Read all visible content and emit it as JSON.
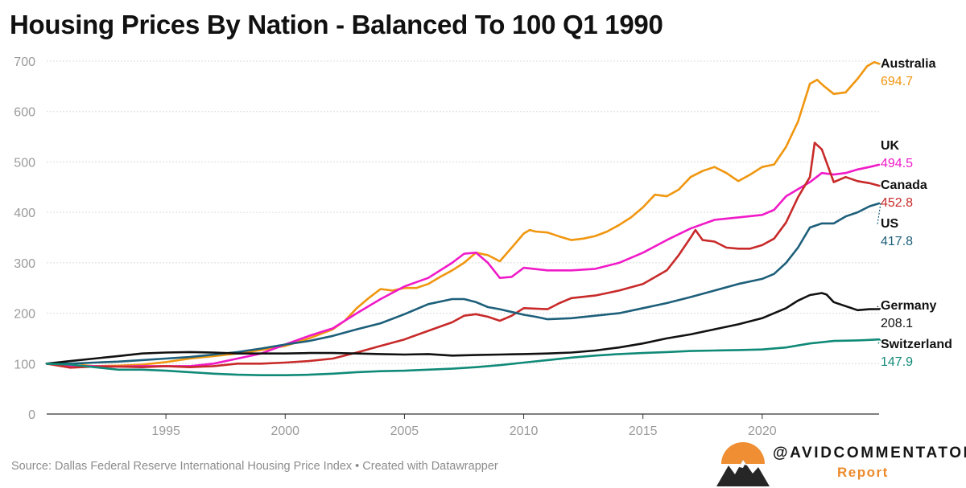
{
  "title": "Housing Prices By Nation - Balanced To 100 Q1 1990",
  "source": "Source: Dallas Federal Reserve International Housing Price Index • Created with Datawrapper",
  "brand": {
    "handle": "@AVIDCOMMENTATOR",
    "sub": "Report"
  },
  "chart_data": {
    "type": "line",
    "title": "Housing Prices By Nation - Balanced To 100 Q1 1990",
    "xlabel": "",
    "ylabel": "",
    "xlim": [
      1990.0,
      2024.9
    ],
    "ylim": [
      0,
      700
    ],
    "yticks": [
      0,
      100,
      200,
      300,
      400,
      500,
      600,
      700
    ],
    "xticks": [
      1995,
      2000,
      2005,
      2010,
      2015,
      2020
    ],
    "grid": "horizontal",
    "legend": "direct labels at line ends (right)",
    "series": [
      {
        "name": "Australia",
        "end_label": "694.7",
        "color": "#f0960f",
        "points": [
          [
            1990,
            100
          ],
          [
            1990.5,
            97
          ],
          [
            1991,
            93
          ],
          [
            1991.5,
            97
          ],
          [
            1992,
            95
          ],
          [
            1993,
            96
          ],
          [
            1994,
            98
          ],
          [
            1995,
            103
          ],
          [
            1996,
            110
          ],
          [
            1997,
            115
          ],
          [
            1998,
            120
          ],
          [
            1999,
            127
          ],
          [
            2000,
            135
          ],
          [
            2001,
            150
          ],
          [
            2002,
            168
          ],
          [
            2002.5,
            185
          ],
          [
            2003,
            210
          ],
          [
            2003.5,
            230
          ],
          [
            2004,
            248
          ],
          [
            2004.5,
            245
          ],
          [
            2005,
            250
          ],
          [
            2005.5,
            250
          ],
          [
            2006,
            258
          ],
          [
            2006.5,
            272
          ],
          [
            2007,
            285
          ],
          [
            2007.5,
            300
          ],
          [
            2008,
            320
          ],
          [
            2008.5,
            315
          ],
          [
            2009,
            303
          ],
          [
            2009.5,
            330
          ],
          [
            2010,
            358
          ],
          [
            2010.25,
            365
          ],
          [
            2010.5,
            362
          ],
          [
            2011,
            360
          ],
          [
            2011.5,
            352
          ],
          [
            2012,
            345
          ],
          [
            2012.5,
            348
          ],
          [
            2013,
            353
          ],
          [
            2013.5,
            362
          ],
          [
            2014,
            375
          ],
          [
            2014.5,
            390
          ],
          [
            2015,
            410
          ],
          [
            2015.5,
            435
          ],
          [
            2016,
            432
          ],
          [
            2016.5,
            445
          ],
          [
            2017,
            470
          ],
          [
            2017.5,
            482
          ],
          [
            2018,
            490
          ],
          [
            2018.5,
            478
          ],
          [
            2019,
            462
          ],
          [
            2019.5,
            475
          ],
          [
            2020,
            490
          ],
          [
            2020.5,
            495
          ],
          [
            2021,
            530
          ],
          [
            2021.5,
            580
          ],
          [
            2022,
            655
          ],
          [
            2022.3,
            663
          ],
          [
            2022.6,
            650
          ],
          [
            2023,
            635
          ],
          [
            2023.5,
            638
          ],
          [
            2024,
            665
          ],
          [
            2024.4,
            690
          ],
          [
            2024.7,
            698
          ],
          [
            2024.9,
            694.7
          ]
        ]
      },
      {
        "name": "UK",
        "end_label": "494.5",
        "color": "#f01ac8",
        "points": [
          [
            1990,
            100
          ],
          [
            1991,
            95
          ],
          [
            1992,
            95
          ],
          [
            1993,
            94
          ],
          [
            1994,
            95
          ],
          [
            1995,
            95
          ],
          [
            1996,
            95
          ],
          [
            1997,
            100
          ],
          [
            1998,
            110
          ],
          [
            1999,
            120
          ],
          [
            2000,
            138
          ],
          [
            2001,
            155
          ],
          [
            2002,
            170
          ],
          [
            2003,
            200
          ],
          [
            2004,
            228
          ],
          [
            2005,
            253
          ],
          [
            2006,
            270
          ],
          [
            2007,
            300
          ],
          [
            2007.5,
            318
          ],
          [
            2008,
            320
          ],
          [
            2008.5,
            300
          ],
          [
            2009,
            270
          ],
          [
            2009.5,
            272
          ],
          [
            2010,
            290
          ],
          [
            2011,
            285
          ],
          [
            2012,
            285
          ],
          [
            2013,
            288
          ],
          [
            2014,
            300
          ],
          [
            2015,
            320
          ],
          [
            2016,
            345
          ],
          [
            2017,
            368
          ],
          [
            2018,
            385
          ],
          [
            2019,
            390
          ],
          [
            2020,
            395
          ],
          [
            2020.5,
            405
          ],
          [
            2021,
            432
          ],
          [
            2022,
            460
          ],
          [
            2022.5,
            478
          ],
          [
            2023,
            475
          ],
          [
            2023.5,
            478
          ],
          [
            2024,
            485
          ],
          [
            2024.5,
            490
          ],
          [
            2024.9,
            494.5
          ]
        ]
      },
      {
        "name": "Canada",
        "end_label": "452.8",
        "color": "#c82a2a",
        "points": [
          [
            1990,
            100
          ],
          [
            1990.5,
            96
          ],
          [
            1991,
            92
          ],
          [
            1992,
            94
          ],
          [
            1993,
            94
          ],
          [
            1994,
            93
          ],
          [
            1995,
            95
          ],
          [
            1996,
            93
          ],
          [
            1997,
            95
          ],
          [
            1998,
            100
          ],
          [
            1999,
            100
          ],
          [
            2000,
            102
          ],
          [
            2001,
            105
          ],
          [
            2002,
            110
          ],
          [
            2003,
            122
          ],
          [
            2004,
            135
          ],
          [
            2005,
            148
          ],
          [
            2006,
            165
          ],
          [
            2007,
            182
          ],
          [
            2007.5,
            195
          ],
          [
            2008,
            198
          ],
          [
            2008.5,
            193
          ],
          [
            2009,
            185
          ],
          [
            2009.5,
            195
          ],
          [
            2010,
            210
          ],
          [
            2011,
            208
          ],
          [
            2011.5,
            220
          ],
          [
            2012,
            230
          ],
          [
            2013,
            235
          ],
          [
            2014,
            245
          ],
          [
            2015,
            258
          ],
          [
            2016,
            285
          ],
          [
            2016.5,
            315
          ],
          [
            2017,
            350
          ],
          [
            2017.2,
            365
          ],
          [
            2017.5,
            345
          ],
          [
            2018,
            342
          ],
          [
            2018.5,
            330
          ],
          [
            2019,
            328
          ],
          [
            2019.5,
            328
          ],
          [
            2020,
            335
          ],
          [
            2020.5,
            348
          ],
          [
            2021,
            380
          ],
          [
            2021.5,
            430
          ],
          [
            2022,
            470
          ],
          [
            2022.2,
            538
          ],
          [
            2022.5,
            525
          ],
          [
            2023,
            460
          ],
          [
            2023.5,
            470
          ],
          [
            2024,
            462
          ],
          [
            2024.5,
            458
          ],
          [
            2024.9,
            452.8
          ]
        ]
      },
      {
        "name": "US",
        "end_label": "417.8",
        "color": "#1d5f7a",
        "points": [
          [
            1990,
            100
          ],
          [
            1991,
            100
          ],
          [
            1992,
            102
          ],
          [
            1993,
            104
          ],
          [
            1994,
            107
          ],
          [
            1995,
            110
          ],
          [
            1996,
            113
          ],
          [
            1997,
            118
          ],
          [
            1998,
            123
          ],
          [
            1999,
            130
          ],
          [
            2000,
            138
          ],
          [
            2001,
            145
          ],
          [
            2002,
            155
          ],
          [
            2003,
            168
          ],
          [
            2004,
            180
          ],
          [
            2005,
            198
          ],
          [
            2006,
            218
          ],
          [
            2007,
            228
          ],
          [
            2007.5,
            228
          ],
          [
            2008,
            222
          ],
          [
            2008.5,
            212
          ],
          [
            2009,
            208
          ],
          [
            2010,
            197
          ],
          [
            2010.5,
            193
          ],
          [
            2011,
            188
          ],
          [
            2012,
            190
          ],
          [
            2013,
            195
          ],
          [
            2014,
            200
          ],
          [
            2015,
            210
          ],
          [
            2016,
            220
          ],
          [
            2017,
            232
          ],
          [
            2018,
            245
          ],
          [
            2019,
            258
          ],
          [
            2020,
            268
          ],
          [
            2020.5,
            278
          ],
          [
            2021,
            300
          ],
          [
            2021.5,
            330
          ],
          [
            2022,
            370
          ],
          [
            2022.5,
            378
          ],
          [
            2023,
            378
          ],
          [
            2023.5,
            392
          ],
          [
            2024,
            400
          ],
          [
            2024.5,
            412
          ],
          [
            2024.9,
            417.8
          ]
        ]
      },
      {
        "name": "Germany",
        "end_label": "208.1",
        "color": "#111111",
        "points": [
          [
            1990,
            100
          ],
          [
            1991,
            105
          ],
          [
            1992,
            110
          ],
          [
            1993,
            115
          ],
          [
            1994,
            120
          ],
          [
            1995,
            122
          ],
          [
            1996,
            123
          ],
          [
            1997,
            122
          ],
          [
            1998,
            120
          ],
          [
            1999,
            120
          ],
          [
            2000,
            120
          ],
          [
            2001,
            121
          ],
          [
            2002,
            121
          ],
          [
            2003,
            120
          ],
          [
            2004,
            119
          ],
          [
            2005,
            118
          ],
          [
            2006,
            119
          ],
          [
            2007,
            116
          ],
          [
            2008,
            117
          ],
          [
            2009,
            118
          ],
          [
            2010,
            119
          ],
          [
            2011,
            120
          ],
          [
            2012,
            122
          ],
          [
            2013,
            126
          ],
          [
            2014,
            132
          ],
          [
            2015,
            140
          ],
          [
            2016,
            150
          ],
          [
            2017,
            158
          ],
          [
            2018,
            168
          ],
          [
            2019,
            178
          ],
          [
            2020,
            190
          ],
          [
            2021,
            210
          ],
          [
            2021.5,
            225
          ],
          [
            2022,
            236
          ],
          [
            2022.5,
            240
          ],
          [
            2022.7,
            237
          ],
          [
            2023,
            222
          ],
          [
            2023.5,
            214
          ],
          [
            2024,
            206
          ],
          [
            2024.5,
            208
          ],
          [
            2024.9,
            208.1
          ]
        ]
      },
      {
        "name": "Switzerland",
        "end_label": "147.9",
        "color": "#108a78",
        "points": [
          [
            1990,
            100
          ],
          [
            1991,
            98
          ],
          [
            1992,
            93
          ],
          [
            1993,
            88
          ],
          [
            1994,
            88
          ],
          [
            1995,
            86
          ],
          [
            1996,
            83
          ],
          [
            1997,
            80
          ],
          [
            1998,
            78
          ],
          [
            1999,
            77
          ],
          [
            2000,
            77
          ],
          [
            2001,
            78
          ],
          [
            2002,
            80
          ],
          [
            2003,
            83
          ],
          [
            2004,
            85
          ],
          [
            2005,
            86
          ],
          [
            2006,
            88
          ],
          [
            2007,
            90
          ],
          [
            2008,
            93
          ],
          [
            2009,
            97
          ],
          [
            2010,
            102
          ],
          [
            2011,
            107
          ],
          [
            2012,
            112
          ],
          [
            2013,
            116
          ],
          [
            2014,
            119
          ],
          [
            2015,
            121
          ],
          [
            2016,
            123
          ],
          [
            2017,
            125
          ],
          [
            2018,
            126
          ],
          [
            2019,
            127
          ],
          [
            2020,
            128
          ],
          [
            2021,
            132
          ],
          [
            2022,
            140
          ],
          [
            2023,
            145
          ],
          [
            2024,
            146
          ],
          [
            2024.5,
            147
          ],
          [
            2024.9,
            147.9
          ]
        ]
      }
    ]
  }
}
